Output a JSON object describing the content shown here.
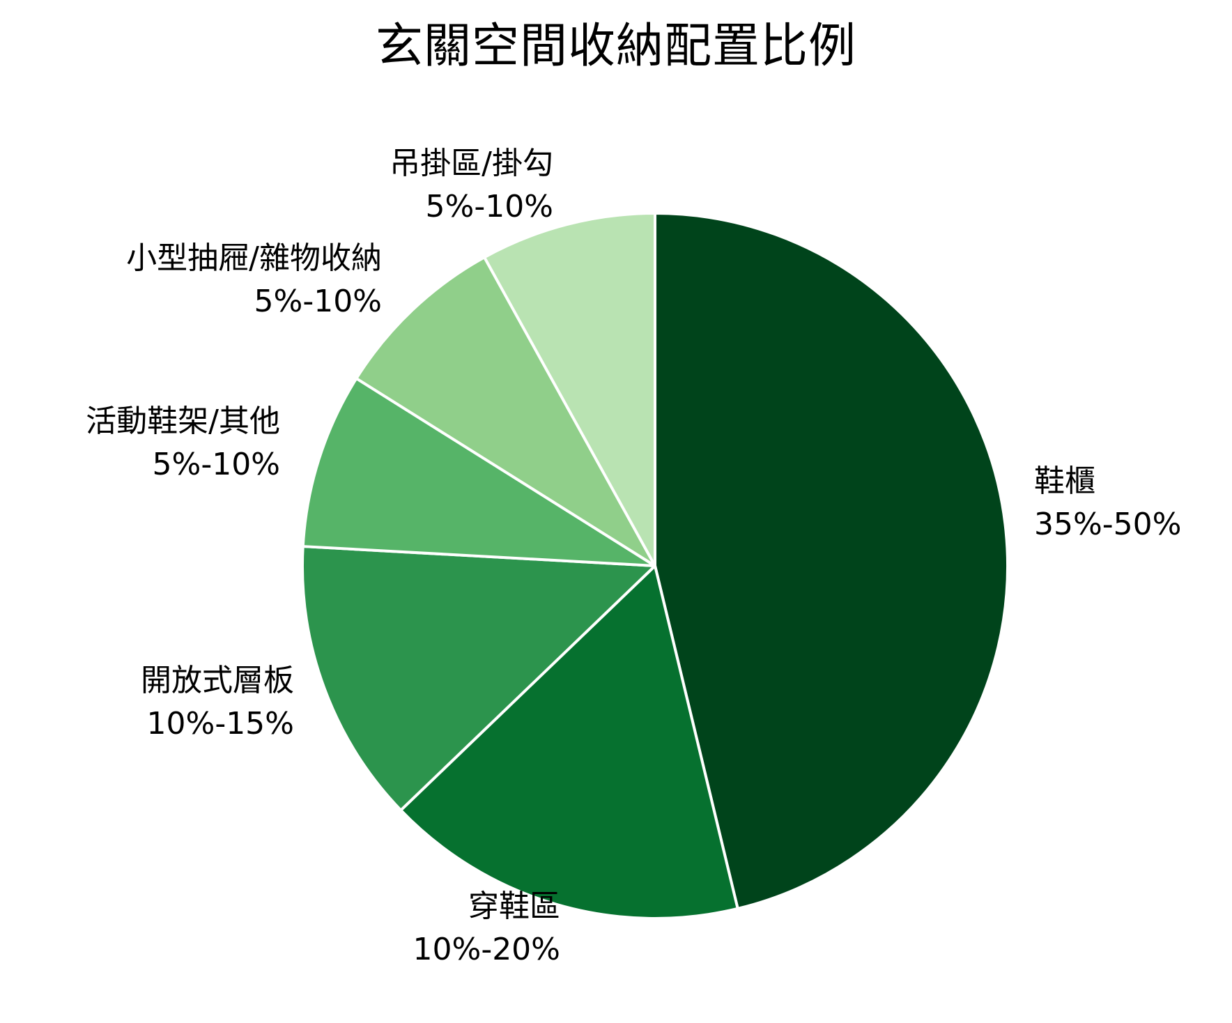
{
  "chart": {
    "title": "玄關空間收納配置比例"
  },
  "chart_data": {
    "type": "pie",
    "title": "玄關空間收納配置比例",
    "start_angle": "12 o'clock",
    "direction": "clockwise",
    "categories": [
      "鞋櫃",
      "穿鞋區",
      "開放式層板",
      "活動鞋架/其他",
      "小型抽屜/雜物收納",
      "吊掛區/掛勾"
    ],
    "range_labels": [
      "35%-50%",
      "10%-20%",
      "10%-15%",
      "5%-10%",
      "5%-10%",
      "5%-10%"
    ],
    "values": [
      46,
      16.5,
      13,
      8,
      8,
      8
    ],
    "colors": [
      "#00441b",
      "#06712f",
      "#2c944d",
      "#56b468",
      "#90cf8a",
      "#b9e3b2"
    ],
    "legend": "none (direct labels)",
    "slice_border_color": "#ffffff"
  },
  "slices": [
    {
      "name": "鞋櫃",
      "range": "35%-50%",
      "color": "#00441b"
    },
    {
      "name": "穿鞋區",
      "range": "10%-20%",
      "color": "#06712f"
    },
    {
      "name": "開放式層板",
      "range": "10%-15%",
      "color": "#2c944d"
    },
    {
      "name": "活動鞋架/其他",
      "range": "5%-10%",
      "color": "#56b468"
    },
    {
      "name": "小型抽屜/雜物收納",
      "range": "5%-10%",
      "color": "#90cf8a"
    },
    {
      "name": "吊掛區/掛勾",
      "range": "5%-10%",
      "color": "#b9e3b2"
    }
  ]
}
